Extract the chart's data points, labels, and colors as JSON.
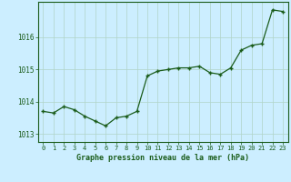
{
  "x": [
    0,
    1,
    2,
    3,
    4,
    5,
    6,
    7,
    8,
    9,
    10,
    11,
    12,
    13,
    14,
    15,
    16,
    17,
    18,
    19,
    20,
    21,
    22,
    23
  ],
  "y": [
    1013.7,
    1013.65,
    1013.85,
    1013.75,
    1013.55,
    1013.4,
    1013.25,
    1013.5,
    1013.55,
    1013.7,
    1014.8,
    1014.95,
    1015.0,
    1015.05,
    1015.05,
    1015.1,
    1014.9,
    1014.85,
    1015.05,
    1015.6,
    1015.75,
    1015.8,
    1016.85,
    1016.8
  ],
  "line_color": "#1a5c1a",
  "marker": "+",
  "marker_color": "#1a5c1a",
  "bg_color": "#cceeff",
  "grid_color": "#b0d4c8",
  "xlabel": "Graphe pression niveau de la mer (hPa)",
  "xlabel_color": "#1a5c1a",
  "tick_color": "#1a5c1a",
  "axis_color": "#1a5c1a",
  "yticks": [
    1013,
    1014,
    1015,
    1016
  ],
  "ylim": [
    1012.75,
    1017.1
  ],
  "xlim": [
    -0.5,
    23.5
  ],
  "xticks": [
    0,
    1,
    2,
    3,
    4,
    5,
    6,
    7,
    8,
    9,
    10,
    11,
    12,
    13,
    14,
    15,
    16,
    17,
    18,
    19,
    20,
    21,
    22,
    23
  ]
}
